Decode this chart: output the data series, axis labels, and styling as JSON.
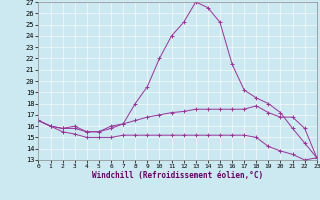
{
  "xlabel": "Windchill (Refroidissement éolien,°C)",
  "background_color": "#cce8f0",
  "line_color": "#993399",
  "ylim_min": 13,
  "ylim_max": 27,
  "xlim_min": 0,
  "xlim_max": 23,
  "yticks": [
    13,
    14,
    15,
    16,
    17,
    18,
    19,
    20,
    21,
    22,
    23,
    24,
    25,
    26,
    27
  ],
  "xticks": [
    0,
    1,
    2,
    3,
    4,
    5,
    6,
    7,
    8,
    9,
    10,
    11,
    12,
    13,
    14,
    15,
    16,
    17,
    18,
    19,
    20,
    21,
    22,
    23
  ],
  "curve1_x": [
    0,
    1,
    2,
    3,
    4,
    5,
    6,
    7,
    8,
    9,
    10,
    11,
    12,
    13,
    14,
    15,
    16,
    17,
    18,
    19,
    20,
    21,
    22,
    23
  ],
  "curve1_y": [
    16.5,
    16.0,
    15.8,
    16.0,
    15.5,
    15.5,
    16.0,
    16.2,
    18.0,
    19.5,
    22.0,
    24.0,
    25.2,
    27.0,
    26.5,
    25.2,
    21.5,
    19.2,
    18.5,
    18.0,
    17.2,
    15.8,
    14.5,
    13.2
  ],
  "curve2_x": [
    0,
    1,
    2,
    3,
    4,
    5,
    6,
    7,
    8,
    9,
    10,
    11,
    12,
    13,
    14,
    15,
    16,
    17,
    18,
    19,
    20,
    21,
    22,
    23
  ],
  "curve2_y": [
    16.5,
    16.0,
    15.8,
    15.8,
    15.5,
    15.5,
    15.8,
    16.2,
    16.5,
    16.8,
    17.0,
    17.2,
    17.3,
    17.5,
    17.5,
    17.5,
    17.5,
    17.5,
    17.8,
    17.2,
    16.8,
    16.8,
    15.8,
    13.2
  ],
  "curve3_x": [
    0,
    1,
    2,
    3,
    4,
    5,
    6,
    7,
    8,
    9,
    10,
    11,
    12,
    13,
    14,
    15,
    16,
    17,
    18,
    19,
    20,
    21,
    22,
    23
  ],
  "curve3_y": [
    16.5,
    16.0,
    15.5,
    15.3,
    15.0,
    15.0,
    15.0,
    15.2,
    15.2,
    15.2,
    15.2,
    15.2,
    15.2,
    15.2,
    15.2,
    15.2,
    15.2,
    15.2,
    15.0,
    14.2,
    13.8,
    13.5,
    13.0,
    13.2
  ]
}
